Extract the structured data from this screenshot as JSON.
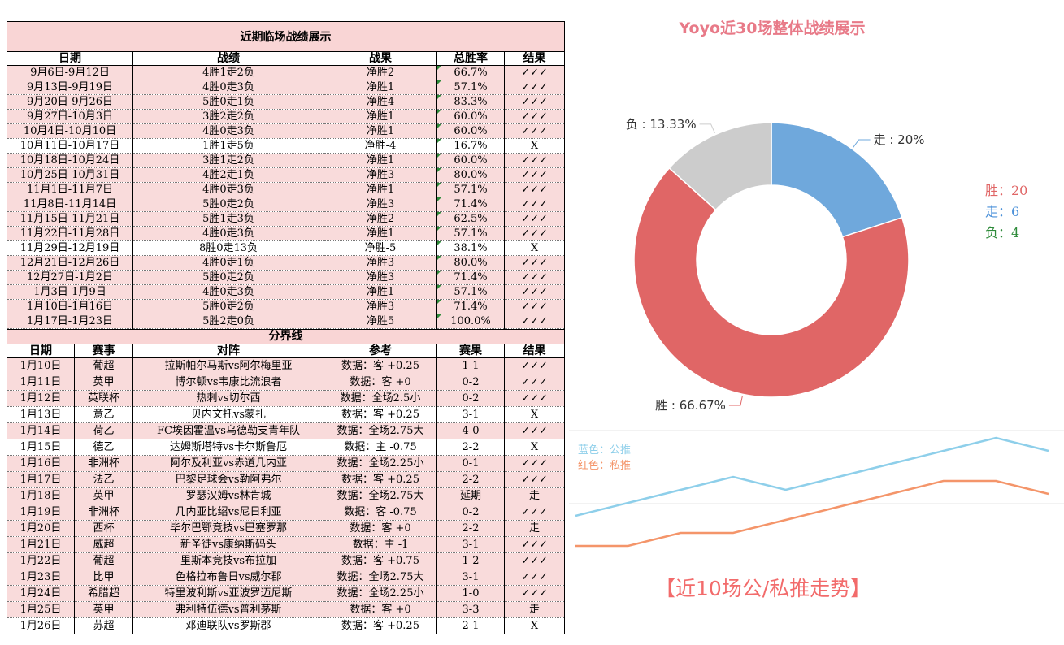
{
  "table1": {
    "title": "近期临场战绩展示",
    "headers": [
      "日期",
      "战绩",
      "战果",
      "总胜率",
      "结果"
    ],
    "rows": [
      [
        "9月6日-9月12日",
        "4胜1走2负",
        "净胜2",
        "66.7%",
        "✓✓✓"
      ],
      [
        "9月13日-9月19日",
        "4胜0走3负",
        "净胜1",
        "57.1%",
        "✓✓✓"
      ],
      [
        "9月20日-9月26日",
        "5胜0走1负",
        "净胜4",
        "83.3%",
        "✓✓✓"
      ],
      [
        "9月27日-10月3日",
        "3胜2走2负",
        "净胜1",
        "60.0%",
        "✓✓✓"
      ],
      [
        "10月4日-10月10日",
        "4胜0走3负",
        "净胜1",
        "60.0%",
        "✓✓✓"
      ],
      [
        "10月11日-10月17日",
        "1胜1走5负",
        "净胜-4",
        "16.7%",
        "X"
      ],
      [
        "10月18日-10月24日",
        "3胜1走2负",
        "净胜1",
        "60.0%",
        "✓✓✓"
      ],
      [
        "10月25日-10月31日",
        "4胜2走1负",
        "净胜3",
        "80.0%",
        "✓✓✓"
      ],
      [
        "11月1日-11月7日",
        "4胜0走3负",
        "净胜1",
        "57.1%",
        "✓✓✓"
      ],
      [
        "11月8日-11月14日",
        "5胜0走2负",
        "净胜3",
        "71.4%",
        "✓✓✓"
      ],
      [
        "11月15日-11月21日",
        "5胜1走3负",
        "净胜2",
        "62.5%",
        "✓✓✓"
      ],
      [
        "11月22日-11月28日",
        "4胜0走3负",
        "净胜1",
        "57.1%",
        "✓✓✓"
      ],
      [
        "11月29日-12月19日",
        "8胜0走13负",
        "净胜-5",
        "38.1%",
        "X"
      ],
      [
        "12月21日-12月26日",
        "4胜0走1负",
        "净胜3",
        "80.0%",
        "✓✓✓"
      ],
      [
        "12月27日-1月2日",
        "5胜0走2负",
        "净胜3",
        "71.4%",
        "✓✓✓"
      ],
      [
        "1月3日-1月9日",
        "4胜0走3负",
        "净胜1",
        "57.1%",
        "✓✓✓"
      ],
      [
        "1月10日-1月16日",
        "5胜0走2负",
        "净胜3",
        "71.4%",
        "✓✓✓"
      ],
      [
        "1月17日-1月23日",
        "5胜2走0负",
        "净胜5",
        "100.0%",
        "✓✓✓"
      ]
    ]
  },
  "table2": {
    "divider": "分界线",
    "headers": [
      "日期",
      "赛事",
      "对阵",
      "参考",
      "赛果",
      "结果"
    ],
    "rows": [
      [
        "1月10日",
        "葡超",
        "拉斯帕尔马斯vs阿尔梅里亚",
        "数据：客 +0.25",
        "1-1",
        "✓✓✓"
      ],
      [
        "1月11日",
        "英甲",
        "博尔顿vs韦康比流浪者",
        "数据：客 +0",
        "0-2",
        "✓✓✓"
      ],
      [
        "1月12日",
        "英联杯",
        "热刺vs切尔西",
        "数据：全场2.5小",
        "0-2",
        "✓✓✓"
      ],
      [
        "1月13日",
        "意乙",
        "贝内文托vs蒙扎",
        "数据：客 +0.25",
        "3-1",
        "X"
      ],
      [
        "1月14日",
        "荷乙",
        "FC埃因霍温vs乌德勒支青年队",
        "数据：全场2.75大",
        "4-0",
        "✓✓✓"
      ],
      [
        "1月15日",
        "德乙",
        "达姆斯塔特vs卡尔斯鲁厄",
        "数据：主 -0.75",
        "2-2",
        "X"
      ],
      [
        "1月16日",
        "非洲杯",
        "阿尔及利亚vs赤道几内亚",
        "数据：全场2.25小",
        "0-1",
        "✓✓✓"
      ],
      [
        "1月17日",
        "法乙",
        "巴黎足球会vs勒阿弗尔",
        "数据：客 +0.25",
        "2-2",
        "✓✓✓"
      ],
      [
        "1月18日",
        "英甲",
        "罗瑟汉姆vs林肯城",
        "数据：全场2.75大",
        "延期",
        "走"
      ],
      [
        "1月19日",
        "非洲杯",
        "几内亚比绍vs尼日利亚",
        "数据：客 -0.75",
        "0-2",
        "✓✓✓"
      ],
      [
        "1月20日",
        "西杯",
        "毕尔巴鄂竞技vs巴塞罗那",
        "数据：客 +0",
        "2-2",
        "走"
      ],
      [
        "1月21日",
        "威超",
        "新圣徒vs康纳斯码头",
        "数据：主 -1",
        "3-1",
        "✓✓✓"
      ],
      [
        "1月22日",
        "葡超",
        "里斯本竞技vs布拉加",
        "数据：客 +0.75",
        "1-2",
        "✓✓✓"
      ],
      [
        "1月23日",
        "比甲",
        "色格拉布鲁日vs威尔郡",
        "数据：全场2.75大",
        "3-1",
        "✓✓✓"
      ],
      [
        "1月24日",
        "希腊超",
        "特里波利斯vs亚波罗迈尼斯",
        "数据：全场2.25小",
        "1-0",
        "✓✓✓"
      ],
      [
        "1月25日",
        "英甲",
        "弗利特伍德vs普利茅斯",
        "数据：客 +0",
        "3-3",
        "走"
      ],
      [
        "1月26日",
        "苏超",
        "邓迪联队vs罗斯郡",
        "数据：客 +0.25",
        "2-1",
        "X"
      ]
    ]
  },
  "chart_data": [
    {
      "type": "pie",
      "title": "Yoyo近30场整体战绩展示",
      "slices": [
        {
          "name": "走",
          "value": 20,
          "label": "走 : 20%",
          "color": "#6fa8dc"
        },
        {
          "name": "胜",
          "value": 66.67,
          "label": "胜 : 66.67%",
          "color": "#e06666"
        },
        {
          "name": "负",
          "value": 13.33,
          "label": "负 : 13.33%",
          "color": "#cccccc"
        }
      ],
      "legend": [
        {
          "text": "胜：20",
          "color": "#e06666"
        },
        {
          "text": "走：6",
          "color": "#4a90d9"
        },
        {
          "text": "负：4",
          "color": "#2e8b3a"
        }
      ]
    },
    {
      "type": "line",
      "title": "【近10场公/私推走势】",
      "x": [
        1,
        2,
        3,
        4,
        5,
        6,
        7,
        8,
        9,
        10
      ],
      "series": [
        {
          "name": "蓝色：公推",
          "color": "#8ecfea",
          "values": [
            1,
            2,
            3,
            4,
            3,
            4,
            5,
            6,
            7,
            6
          ]
        },
        {
          "name": "红色：私推",
          "color": "#f4956a",
          "values": [
            1,
            1,
            2,
            2,
            3,
            4,
            5,
            6,
            6,
            5
          ]
        }
      ]
    }
  ]
}
